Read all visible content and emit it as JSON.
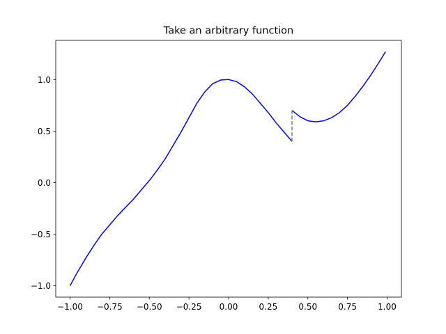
{
  "chart_data": {
    "type": "line",
    "title": "Take an arbitrary function",
    "xlabel": "",
    "ylabel": "",
    "xlim": [
      -1.09,
      1.09
    ],
    "ylim": [
      -1.11,
      1.38
    ],
    "x_ticks": [
      -1.0,
      -0.75,
      -0.5,
      -0.25,
      0.0,
      0.25,
      0.5,
      0.75,
      1.0
    ],
    "x_tick_labels": [
      "−1.00",
      "−0.75",
      "−0.50",
      "−0.25",
      "0.00",
      "0.25",
      "0.50",
      "0.75",
      "1.00"
    ],
    "y_ticks": [
      -1.0,
      -0.5,
      0.0,
      0.5,
      1.0
    ],
    "y_tick_labels": [
      "−1.0",
      "−0.5",
      "0.0",
      "0.5",
      "1.0"
    ],
    "grid": false,
    "legend": "none",
    "series": [
      {
        "color": "#0000ff",
        "style": "solid",
        "x": [
          -1.0,
          -0.95,
          -0.9,
          -0.85,
          -0.8,
          -0.75,
          -0.7,
          -0.65,
          -0.6,
          -0.55,
          -0.5,
          -0.45,
          -0.4,
          -0.35,
          -0.3,
          -0.25,
          -0.2,
          -0.15,
          -0.1,
          -0.05,
          0.0,
          0.05,
          0.1,
          0.15,
          0.2,
          0.25,
          0.3,
          0.35,
          0.4
        ],
        "y": [
          -1.0,
          -0.86,
          -0.73,
          -0.61,
          -0.5,
          -0.41,
          -0.32,
          -0.24,
          -0.16,
          -0.07,
          0.02,
          0.12,
          0.23,
          0.36,
          0.49,
          0.63,
          0.77,
          0.88,
          0.96,
          0.995,
          1.0,
          0.98,
          0.93,
          0.86,
          0.77,
          0.68,
          0.58,
          0.49,
          0.4
        ]
      },
      {
        "color": "#0000ff",
        "style": "solid",
        "x": [
          0.4,
          0.45,
          0.5,
          0.55,
          0.6,
          0.65,
          0.7,
          0.75,
          0.8,
          0.85,
          0.9,
          0.95,
          0.99
        ],
        "y": [
          0.7,
          0.64,
          0.6,
          0.59,
          0.6,
          0.63,
          0.68,
          0.75,
          0.84,
          0.94,
          1.05,
          1.17,
          1.27
        ]
      },
      {
        "color": "#808080",
        "style": "dashed",
        "x": [
          0.4,
          0.4
        ],
        "y": [
          0.4,
          0.7
        ]
      }
    ]
  }
}
